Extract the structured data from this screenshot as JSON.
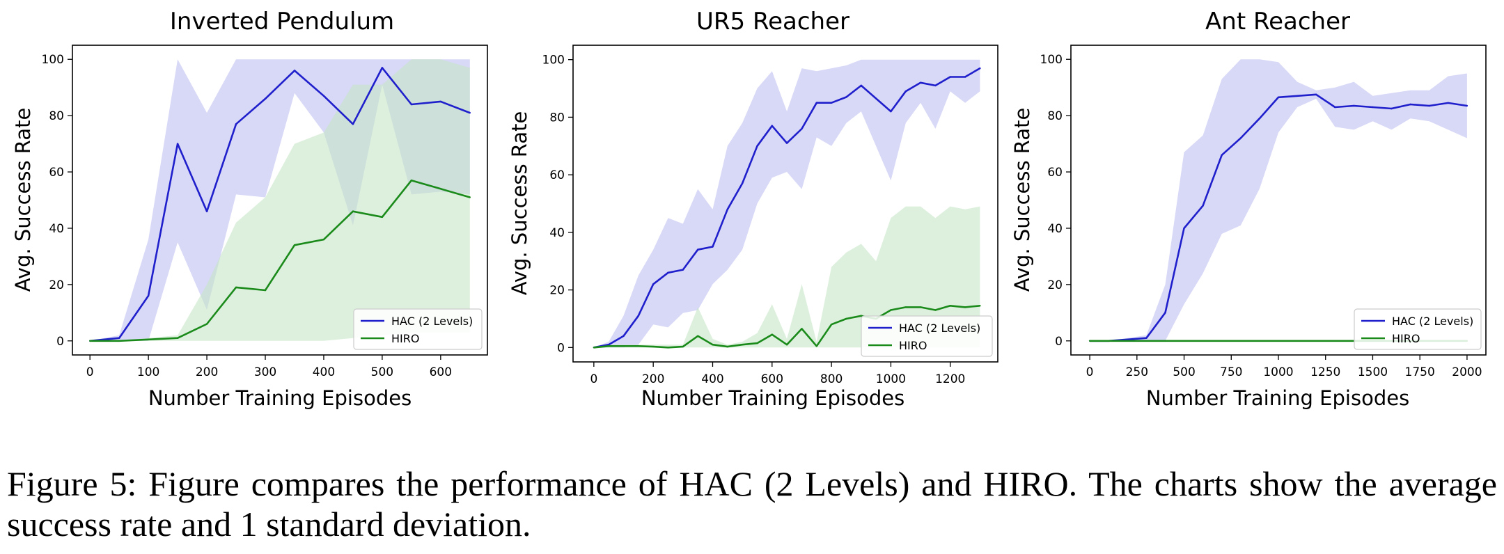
{
  "chart_data": [
    {
      "type": "line",
      "title": "Inverted Pendulum",
      "xlabel": "Number Training Episodes",
      "ylabel": "Avg. Success Rate",
      "xlim": [
        -30,
        680
      ],
      "ylim": [
        -5,
        105
      ],
      "xticks": [
        0,
        100,
        200,
        300,
        400,
        500,
        600
      ],
      "yticks": [
        0,
        20,
        40,
        60,
        80,
        100
      ],
      "legend": "bottom-right",
      "series": [
        {
          "name": "HAC (2 Levels)",
          "color": "#1f1fcc",
          "band_color": "#b8b8f0",
          "x": [
            0,
            50,
            100,
            150,
            200,
            250,
            300,
            350,
            400,
            450,
            500,
            550,
            600,
            650
          ],
          "y": [
            0,
            1,
            16,
            70,
            46,
            77,
            86,
            96,
            87,
            77,
            97,
            84,
            85,
            81
          ],
          "upper": [
            0,
            2,
            36,
            100,
            81,
            100,
            100,
            100,
            100,
            100,
            100,
            100,
            100,
            100
          ],
          "lower": [
            0,
            0,
            0,
            35,
            11,
            52,
            51,
            88,
            74,
            41,
            91,
            52,
            53,
            52
          ]
        },
        {
          "name": "HIRO",
          "color": "#1a8a1a",
          "band_color": "#c6e6c6",
          "x": [
            0,
            50,
            100,
            150,
            200,
            250,
            300,
            350,
            400,
            450,
            500,
            550,
            600,
            650
          ],
          "y": [
            0,
            0,
            0.5,
            1,
            6,
            19,
            18,
            34,
            36,
            46,
            44,
            57,
            54,
            51
          ],
          "upper": [
            0,
            0,
            1,
            2,
            20,
            42,
            51,
            70,
            74,
            91,
            91,
            100,
            100,
            97
          ],
          "lower": [
            0,
            0,
            0,
            0,
            0,
            0,
            0,
            0,
            0,
            1,
            2,
            3,
            3,
            3
          ]
        }
      ]
    },
    {
      "type": "line",
      "title": "UR5 Reacher",
      "xlabel": "Number Training Episodes",
      "ylabel": "Avg. Success Rate",
      "xlim": [
        -70,
        1360
      ],
      "ylim": [
        -5,
        105
      ],
      "xticks": [
        0,
        200,
        400,
        600,
        800,
        1000,
        1200
      ],
      "yticks": [
        0,
        20,
        40,
        60,
        80,
        100
      ],
      "legend": "bottom-right",
      "series": [
        {
          "name": "HAC (2 Levels)",
          "color": "#1f1fcc",
          "band_color": "#b8b8f0",
          "x": [
            0,
            50,
            100,
            150,
            200,
            250,
            300,
            350,
            400,
            450,
            500,
            550,
            600,
            650,
            700,
            750,
            800,
            850,
            900,
            1000,
            1050,
            1100,
            1150,
            1200,
            1250,
            1300
          ],
          "y": [
            0,
            1,
            4,
            11,
            22,
            26,
            27,
            34,
            35,
            48,
            57,
            70,
            77,
            71,
            76,
            85,
            85,
            87,
            91,
            82,
            89,
            92,
            91,
            94,
            94,
            97
          ],
          "upper": [
            0,
            2,
            11,
            25,
            34,
            45,
            43,
            55,
            48,
            70,
            78,
            90,
            96,
            82,
            97,
            96,
            97,
            98,
            100,
            100,
            100,
            100,
            100,
            100,
            100,
            100
          ],
          "lower": [
            0,
            0,
            0,
            1,
            8,
            7,
            12,
            13,
            22,
            27,
            34,
            50,
            59,
            61,
            55,
            73,
            70,
            78,
            82,
            58,
            78,
            85,
            76,
            89,
            85,
            89
          ]
        },
        {
          "name": "HIRO",
          "color": "#1a8a1a",
          "band_color": "#c6e6c6",
          "x": [
            0,
            50,
            100,
            150,
            200,
            250,
            300,
            350,
            400,
            450,
            500,
            550,
            600,
            650,
            700,
            750,
            800,
            850,
            900,
            950,
            1000,
            1050,
            1100,
            1150,
            1200,
            1250,
            1300
          ],
          "y": [
            0,
            0.5,
            0.5,
            0.5,
            0.3,
            0,
            0.3,
            4,
            1,
            0.3,
            1,
            1.5,
            4.5,
            1,
            6.5,
            0.5,
            8,
            10,
            11,
            10,
            13,
            14,
            14,
            13,
            14.5,
            14,
            14.5
          ],
          "upper": [
            0,
            1,
            1,
            1,
            1,
            1,
            1,
            14,
            3,
            1,
            2,
            5,
            15,
            3,
            22,
            2,
            28,
            33,
            36,
            30,
            45,
            49,
            49,
            45,
            49,
            48,
            49
          ],
          "lower": [
            0,
            0,
            0,
            0,
            0,
            0,
            0,
            0,
            0,
            0,
            0,
            0,
            0,
            0,
            0,
            0,
            0,
            0,
            0,
            0,
            0,
            0,
            0,
            0,
            0,
            0,
            0
          ]
        }
      ]
    },
    {
      "type": "line",
      "title": "Ant Reacher",
      "xlabel": "Number Training Episodes",
      "ylabel": "Avg. Success Rate",
      "xlim": [
        -100,
        2100
      ],
      "ylim": [
        -5,
        105
      ],
      "xticks": [
        0,
        250,
        500,
        750,
        1000,
        1250,
        1500,
        1750,
        2000
      ],
      "yticks": [
        0,
        20,
        40,
        60,
        80,
        100
      ],
      "legend": "bottom-right",
      "series": [
        {
          "name": "HAC (2 Levels)",
          "color": "#1f1fcc",
          "band_color": "#b8b8f0",
          "x": [
            0,
            100,
            200,
            300,
            400,
            500,
            600,
            700,
            800,
            900,
            1000,
            1100,
            1200,
            1300,
            1400,
            1500,
            1600,
            1700,
            1800,
            1900,
            2000
          ],
          "y": [
            0,
            0,
            0.5,
            1,
            10,
            40,
            48,
            66,
            72,
            79,
            86.5,
            87,
            87.5,
            83,
            83.5,
            83,
            82.5,
            84,
            83.5,
            84.5,
            83.5
          ],
          "upper": [
            0,
            0,
            1,
            2,
            20,
            67,
            73,
            93,
            100,
            100,
            99,
            92,
            89,
            90,
            92,
            87,
            88,
            89,
            89,
            94,
            95
          ],
          "lower": [
            0,
            0,
            0,
            0,
            0,
            13,
            24,
            38,
            41,
            54,
            74,
            83,
            86,
            76,
            75,
            78,
            75,
            79,
            78,
            75,
            72
          ]
        },
        {
          "name": "HIRO",
          "color": "#1a8a1a",
          "band_color": "#c6e6c6",
          "x": [
            0,
            2000
          ],
          "y": [
            0,
            0
          ],
          "upper": [
            0,
            0
          ],
          "lower": [
            0,
            0
          ]
        }
      ]
    }
  ],
  "caption": "Figure 5: Figure compares the performance of HAC (2 Levels) and HIRO. The charts show the average success rate and 1 standard deviation."
}
